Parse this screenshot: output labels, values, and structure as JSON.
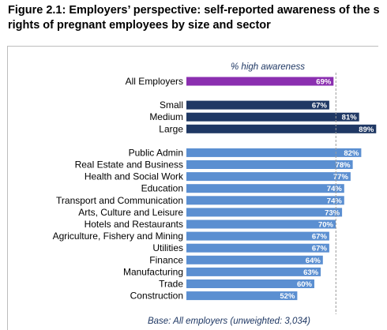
{
  "title_line1": "Figure 2.1:  Employers’ perspective: self-reported awareness of the s",
  "title_line2": "rights of pregnant employees by size and sector",
  "chart_data": {
    "type": "bar",
    "orientation": "horizontal",
    "title": "Figure 2.1: Employers’ perspective: self-reported awareness of the s rights of pregnant employees by size and sector",
    "column_header": "% high awareness",
    "footnote": "Base: All employers (unweighted: 3,034)",
    "xlim": [
      0,
      100
    ],
    "grid": false,
    "reference_line": 69,
    "colors": {
      "all": "#8b2fb0",
      "size": "#1f3864",
      "sector": "#5b8fd1"
    },
    "groups": [
      {
        "group": "all",
        "items": [
          {
            "label": "All Employers",
            "value": 69,
            "value_label": "69%"
          }
        ]
      },
      {
        "group": "size",
        "items": [
          {
            "label": "Small",
            "value": 67,
            "value_label": "67%"
          },
          {
            "label": "Medium",
            "value": 81,
            "value_label": "81%"
          },
          {
            "label": "Large",
            "value": 89,
            "value_label": "89%"
          }
        ]
      },
      {
        "group": "sector",
        "items": [
          {
            "label": "Public Admin",
            "value": 82,
            "value_label": "82%"
          },
          {
            "label": "Real Estate and Business",
            "value": 78,
            "value_label": "78%"
          },
          {
            "label": "Health and Social Work",
            "value": 77,
            "value_label": "77%"
          },
          {
            "label": "Education",
            "value": 74,
            "value_label": "74%"
          },
          {
            "label": "Transport and Communication",
            "value": 74,
            "value_label": "74%"
          },
          {
            "label": "Arts, Culture and Leisure",
            "value": 73,
            "value_label": "73%"
          },
          {
            "label": "Hotels and Restaurants",
            "value": 70,
            "value_label": "70%"
          },
          {
            "label": "Agriculture, Fishery and Mining",
            "value": 67,
            "value_label": "67%"
          },
          {
            "label": "Utilities",
            "value": 67,
            "value_label": "67%"
          },
          {
            "label": "Finance",
            "value": 64,
            "value_label": "64%"
          },
          {
            "label": "Manufacturing",
            "value": 63,
            "value_label": "63%"
          },
          {
            "label": "Trade",
            "value": 60,
            "value_label": "60%"
          },
          {
            "label": "Construction",
            "value": 52,
            "value_label": "52%"
          }
        ]
      }
    ]
  }
}
